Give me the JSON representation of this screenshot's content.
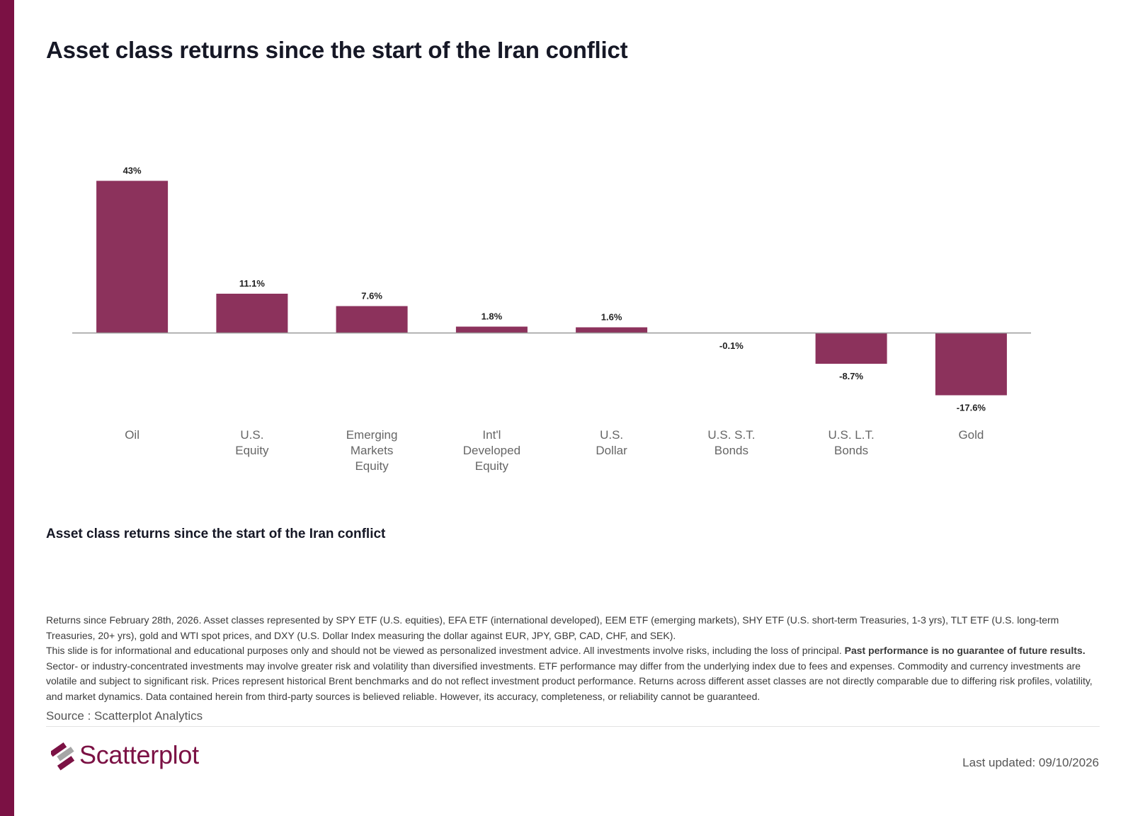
{
  "brand": {
    "name": "Scatterplot",
    "accent_color": "#7b1144",
    "bar_color": "#8c325c"
  },
  "page": {
    "title": "Asset class returns since the start of the Iran conflict",
    "subtitle": "Asset class returns since the start of the Iran conflict"
  },
  "chart_data": {
    "type": "bar",
    "title": "Asset class returns since the start of the Iran conflict",
    "xlabel": "",
    "ylabel": "",
    "unit": "%",
    "categories": [
      [
        "Oil"
      ],
      [
        "U.S.",
        "Equity"
      ],
      [
        "Emerging",
        "Markets",
        "Equity"
      ],
      [
        "Int'l",
        "Developed",
        "Equity"
      ],
      [
        "U.S.",
        "Dollar"
      ],
      [
        "U.S. S.T.",
        "Bonds"
      ],
      [
        "U.S. L.T.",
        "Bonds"
      ],
      [
        "Gold"
      ]
    ],
    "values": [
      43,
      11.1,
      7.6,
      1.8,
      1.6,
      -0.1,
      -8.7,
      -17.6
    ],
    "value_labels": [
      "43%",
      "11.1%",
      "7.6%",
      "1.8%",
      "1.6%",
      "-0.1%",
      "-8.7%",
      "-17.6%"
    ],
    "ylim": [
      -20,
      45
    ],
    "grid": false,
    "legend": "none"
  },
  "footnote": {
    "line1": "Returns since February 28th, 2026. Asset classes represented by SPY ETF (U.S. equities), EFA ETF (international developed), EEM ETF (emerging markets), SHY ETF (U.S. short-term Treasuries, 1-3 yrs), TLT ETF (U.S. long-term Treasuries, 20+ yrs), gold and WTI spot prices, and DXY (U.S. Dollar Index measuring the dollar against EUR, JPY, GBP, CAD, CHF, and SEK).",
    "line2_start": "This slide is for informational and educational purposes only and should not be viewed as personalized investment advice. All investments involve risks, including the loss of principal. ",
    "line2_bold": "Past performance is no guarantee of future results.",
    "line2_end": " Sector- or industry-concentrated investments may involve greater risk and volatility than diversified investments. ETF performance may differ from the underlying index due to fees and expenses. Commodity and currency investments are volatile and subject to significant risk. Prices represent historical Brent benchmarks and do not reflect investment product performance. Returns across different asset classes are not directly comparable due to differing risk profiles, volatility, and market dynamics. Data contained herein from third-party sources is believed reliable. However, its accuracy, completeness, or reliability cannot be guaranteed."
  },
  "source": "Source : Scatterplot Analytics",
  "last_updated": "Last updated: 09/10/2026"
}
